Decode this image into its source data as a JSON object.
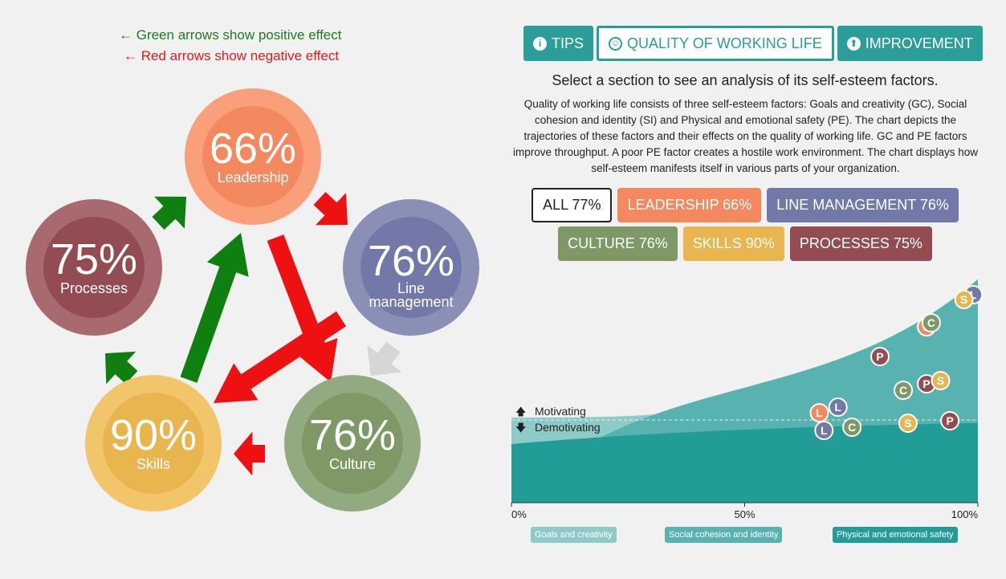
{
  "legend": {
    "green_text": "← Green arrows show positive effect",
    "red_text": "← Red arrows show negative effect",
    "positive_color": "#0f7f0f",
    "negative_color": "#ee1111"
  },
  "circles": [
    {
      "id": "leadership",
      "percent": "66%",
      "label_lines": [
        "Leadership"
      ],
      "outer": "#f9a07a",
      "inner": "#f4895f"
    },
    {
      "id": "line-management",
      "percent": "76%",
      "label_lines": [
        "Line",
        "management"
      ],
      "outer": "#8a8fb6",
      "inner": "#7279a8"
    },
    {
      "id": "culture",
      "percent": "76%",
      "label_lines": [
        "Culture"
      ],
      "outer": "#92aa7f",
      "inner": "#7e9866"
    },
    {
      "id": "skills",
      "percent": "90%",
      "label_lines": [
        "Skills"
      ],
      "outer": "#f2c56a",
      "inner": "#e8b54f"
    },
    {
      "id": "processes",
      "percent": "75%",
      "label_lines": [
        "Processes"
      ],
      "outer": "#a86a6e",
      "inner": "#934d52"
    }
  ],
  "tabs": [
    {
      "label": "TIPS",
      "icon": "info-icon",
      "selected": false
    },
    {
      "label": "QUALITY OF WORKING LIFE",
      "icon": "smiley-icon",
      "selected": true
    },
    {
      "label": "IMPROVEMENT",
      "icon": "arrow-up-circle-icon",
      "selected": false
    }
  ],
  "subtitle": "Select a section to see an analysis of its self-esteem factors.",
  "description": "Quality of working life consists of three self-esteem factors: Goals and creativity (GC), Social cohesion and identity (SI) and Physical and emotional safety (PE). The chart depicts the trajectories of these factors and their effects on the quality of working life. GC and PE factors improve throughput. A poor PE factor creates a hostile work environment. The chart displays how self-esteem manifests itself in various parts of your organization.",
  "filters": [
    [
      {
        "label": "ALL 77%",
        "color": "#ffffff",
        "selected": true
      },
      {
        "label": "LEADERSHIP 66%",
        "color": "#f4895f"
      },
      {
        "label": "LINE MANAGEMENT 76%",
        "color": "#7279a8"
      }
    ],
    [
      {
        "label": "CULTURE 76%",
        "color": "#7e9866"
      },
      {
        "label": "SKILLS 90%",
        "color": "#e8b54f"
      },
      {
        "label": "PROCESSES 75%",
        "color": "#934d52"
      }
    ]
  ],
  "chart_data": {
    "type": "area",
    "x_ticks": [
      "0%",
      "50%",
      "100%"
    ],
    "xlim": [
      0,
      100
    ],
    "motivating_label": "Motivating",
    "demotivating_label": "Demotivating",
    "series": [
      {
        "name": "Goals and creativity",
        "color": "#8ecac8"
      },
      {
        "name": "Social cohesion and identity",
        "color": "#58b3b0"
      },
      {
        "name": "Physical and emotional safety",
        "color": "#229c97"
      }
    ],
    "markers": [
      {
        "letter": "L",
        "x": 99,
        "color": "#7279a8"
      },
      {
        "letter": "S",
        "x": 97,
        "color": "#e8b54f"
      },
      {
        "letter": "L",
        "x": 89,
        "color": "#f4895f"
      },
      {
        "letter": "C",
        "x": 90,
        "color": "#7e9866"
      },
      {
        "letter": "P",
        "x": 79,
        "color": "#934d52"
      },
      {
        "letter": "C",
        "x": 84,
        "color": "#7e9866"
      },
      {
        "letter": "P",
        "x": 89,
        "color": "#934d52"
      },
      {
        "letter": "S",
        "x": 92,
        "color": "#e8b54f"
      },
      {
        "letter": "L",
        "x": 66,
        "color": "#f4895f"
      },
      {
        "letter": "L",
        "x": 70,
        "color": "#7279a8"
      },
      {
        "letter": "L",
        "x": 67,
        "color": "#7279a8"
      },
      {
        "letter": "C",
        "x": 73,
        "color": "#7e9866"
      },
      {
        "letter": "S",
        "x": 85,
        "color": "#e8b54f"
      },
      {
        "letter": "P",
        "x": 94,
        "color": "#934d52"
      }
    ]
  }
}
